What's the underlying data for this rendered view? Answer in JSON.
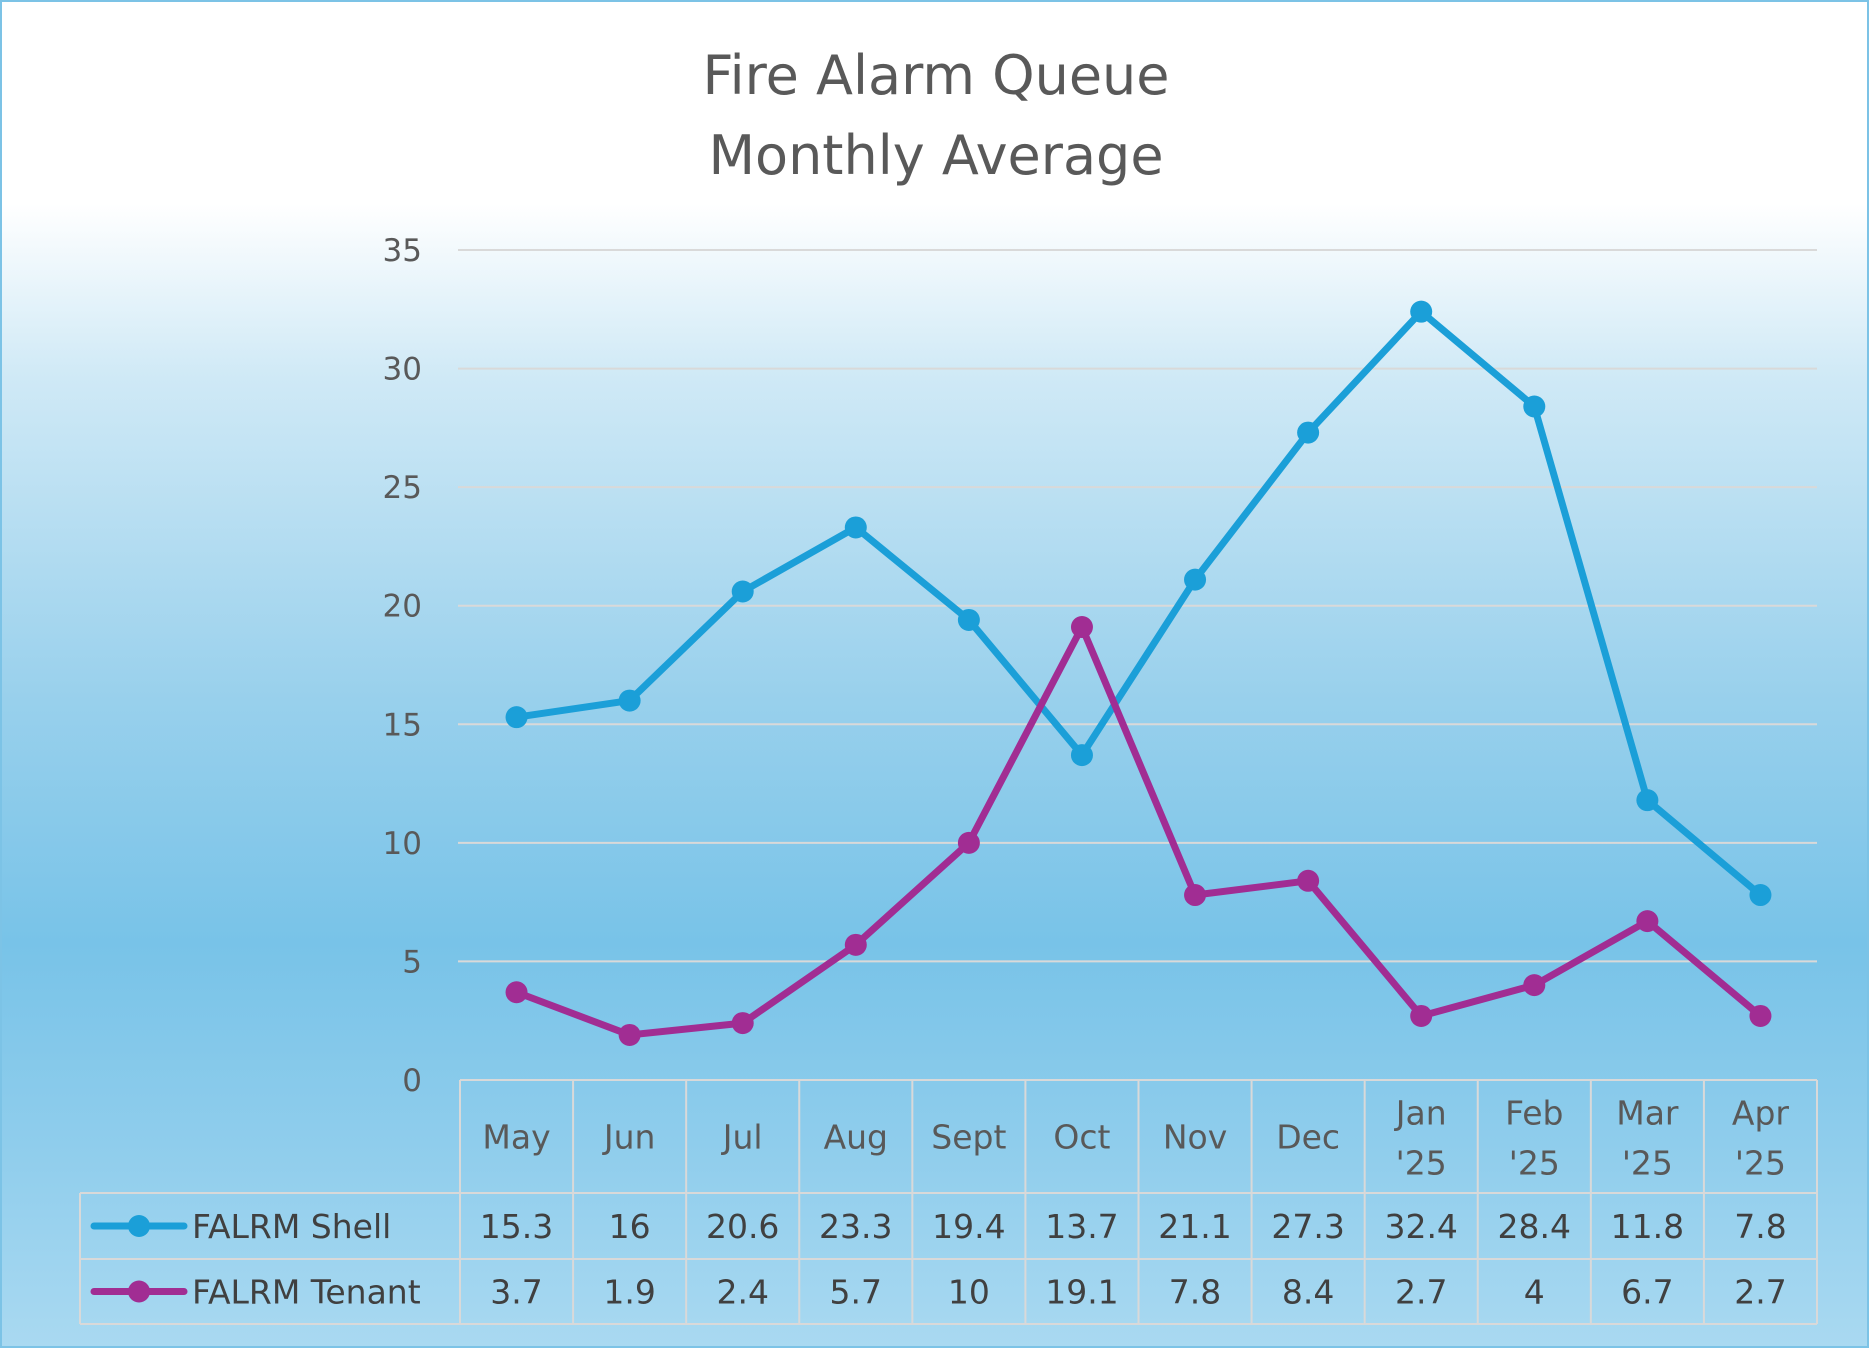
{
  "chart_data": {
    "type": "line",
    "title": [
      "Fire Alarm Queue",
      "Monthly Average"
    ],
    "categories": [
      [
        "May"
      ],
      [
        "Jun"
      ],
      [
        "Jul"
      ],
      [
        "Aug"
      ],
      [
        "Sept"
      ],
      [
        "Oct"
      ],
      [
        "Nov"
      ],
      [
        "Dec"
      ],
      [
        "Jan",
        "'25"
      ],
      [
        "Feb",
        "'25"
      ],
      [
        "Mar",
        "'25"
      ],
      [
        "Apr",
        "'25"
      ]
    ],
    "series": [
      {
        "name": "FALRM Shell",
        "color": "#1b9fd8",
        "values": [
          15.3,
          16,
          20.6,
          23.3,
          19.4,
          13.7,
          21.1,
          27.3,
          32.4,
          28.4,
          11.8,
          7.8
        ]
      },
      {
        "name": "FALRM Tenant",
        "color": "#a12d93",
        "values": [
          3.7,
          1.9,
          2.4,
          5.7,
          10,
          19.1,
          7.8,
          8.4,
          2.7,
          4,
          6.7,
          2.7
        ]
      }
    ],
    "ylim": [
      0,
      35
    ],
    "yticks": [
      0,
      5,
      10,
      15,
      20,
      25,
      30,
      35
    ],
    "grid": true,
    "legend": "data-table-left",
    "data_table": true
  }
}
